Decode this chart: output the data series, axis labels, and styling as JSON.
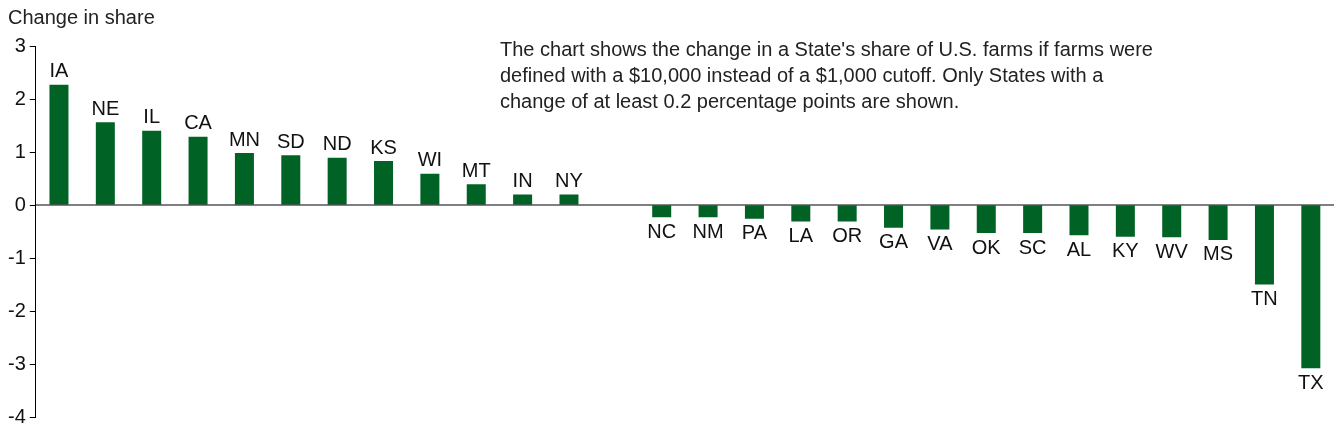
{
  "chart_data": {
    "type": "bar",
    "ylabel": "Change in share",
    "annotations": [
      "The chart shows the change in a State's share of U.S. farms if farms were defined with a $10,000 instead of a $1,000 cutoff. Only States with a change of at least 0.2 percentage points are shown."
    ],
    "categories": [
      "IA",
      "NE",
      "IL",
      "CA",
      "MN",
      "SD",
      "ND",
      "KS",
      "WI",
      "MT",
      "IN",
      "NY",
      null,
      "NC",
      "NM",
      "PA",
      "LA",
      "OR",
      "GA",
      "VA",
      "OK",
      "SC",
      "AL",
      "KY",
      "WV",
      "MS",
      "TN",
      "TX"
    ],
    "values": [
      2.27,
      1.56,
      1.4,
      1.29,
      0.98,
      0.94,
      0.89,
      0.83,
      0.59,
      0.39,
      0.2,
      0.2,
      null,
      -0.23,
      -0.23,
      -0.26,
      -0.31,
      -0.31,
      -0.43,
      -0.46,
      -0.53,
      -0.53,
      -0.57,
      -0.6,
      -0.61,
      -0.66,
      -1.5,
      -3.08
    ],
    "color": "#006325",
    "ylim": [
      -4,
      3
    ],
    "yticks": [
      -4,
      -3,
      -2,
      -1,
      0,
      1,
      2,
      3
    ],
    "grid": false,
    "legend": false
  }
}
